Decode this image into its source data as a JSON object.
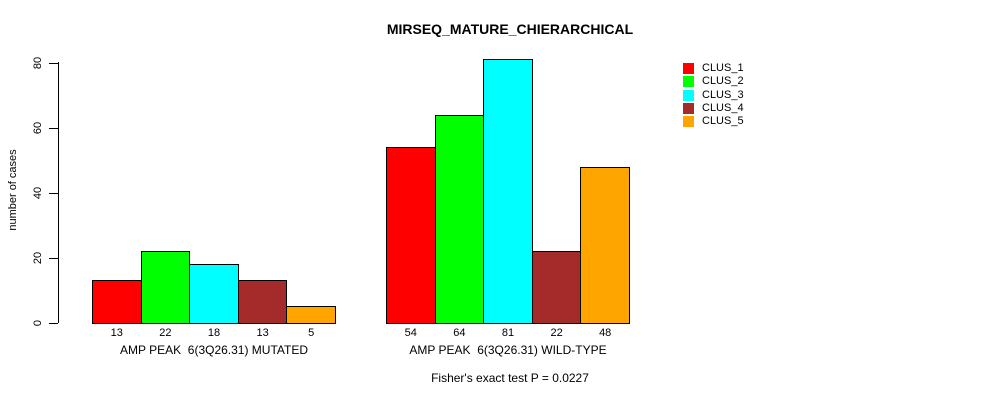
{
  "title": "MIRSEQ_MATURE_CHIERARCHICAL",
  "footer": "Fisher's exact test P = 0.0227",
  "chart_data": {
    "type": "bar",
    "title": "MIRSEQ_MATURE_CHIERARCHICAL",
    "xlabel": "",
    "ylabel": "number of cases",
    "ylim": [
      0,
      80
    ],
    "yticks": [
      0,
      20,
      40,
      60,
      80
    ],
    "grid": false,
    "legend_position": "right",
    "bar_value_labels": true,
    "categories": [
      "AMP PEAK  6(3Q26.31) MUTATED",
      "AMP PEAK  6(3Q26.31) WILD-TYPE"
    ],
    "series": [
      {
        "name": "CLUS_1",
        "color": "#FF0000",
        "values": [
          13,
          54
        ]
      },
      {
        "name": "CLUS_2",
        "color": "#00FF00",
        "values": [
          22,
          64
        ]
      },
      {
        "name": "CLUS_3",
        "color": "#00FFFF",
        "values": [
          18,
          81
        ]
      },
      {
        "name": "CLUS_4",
        "color": "#A52A2A",
        "values": [
          13,
          22
        ]
      },
      {
        "name": "CLUS_5",
        "color": "#FFA500",
        "values": [
          5,
          48
        ]
      }
    ],
    "annotation": "Fisher's exact test P = 0.0227"
  }
}
